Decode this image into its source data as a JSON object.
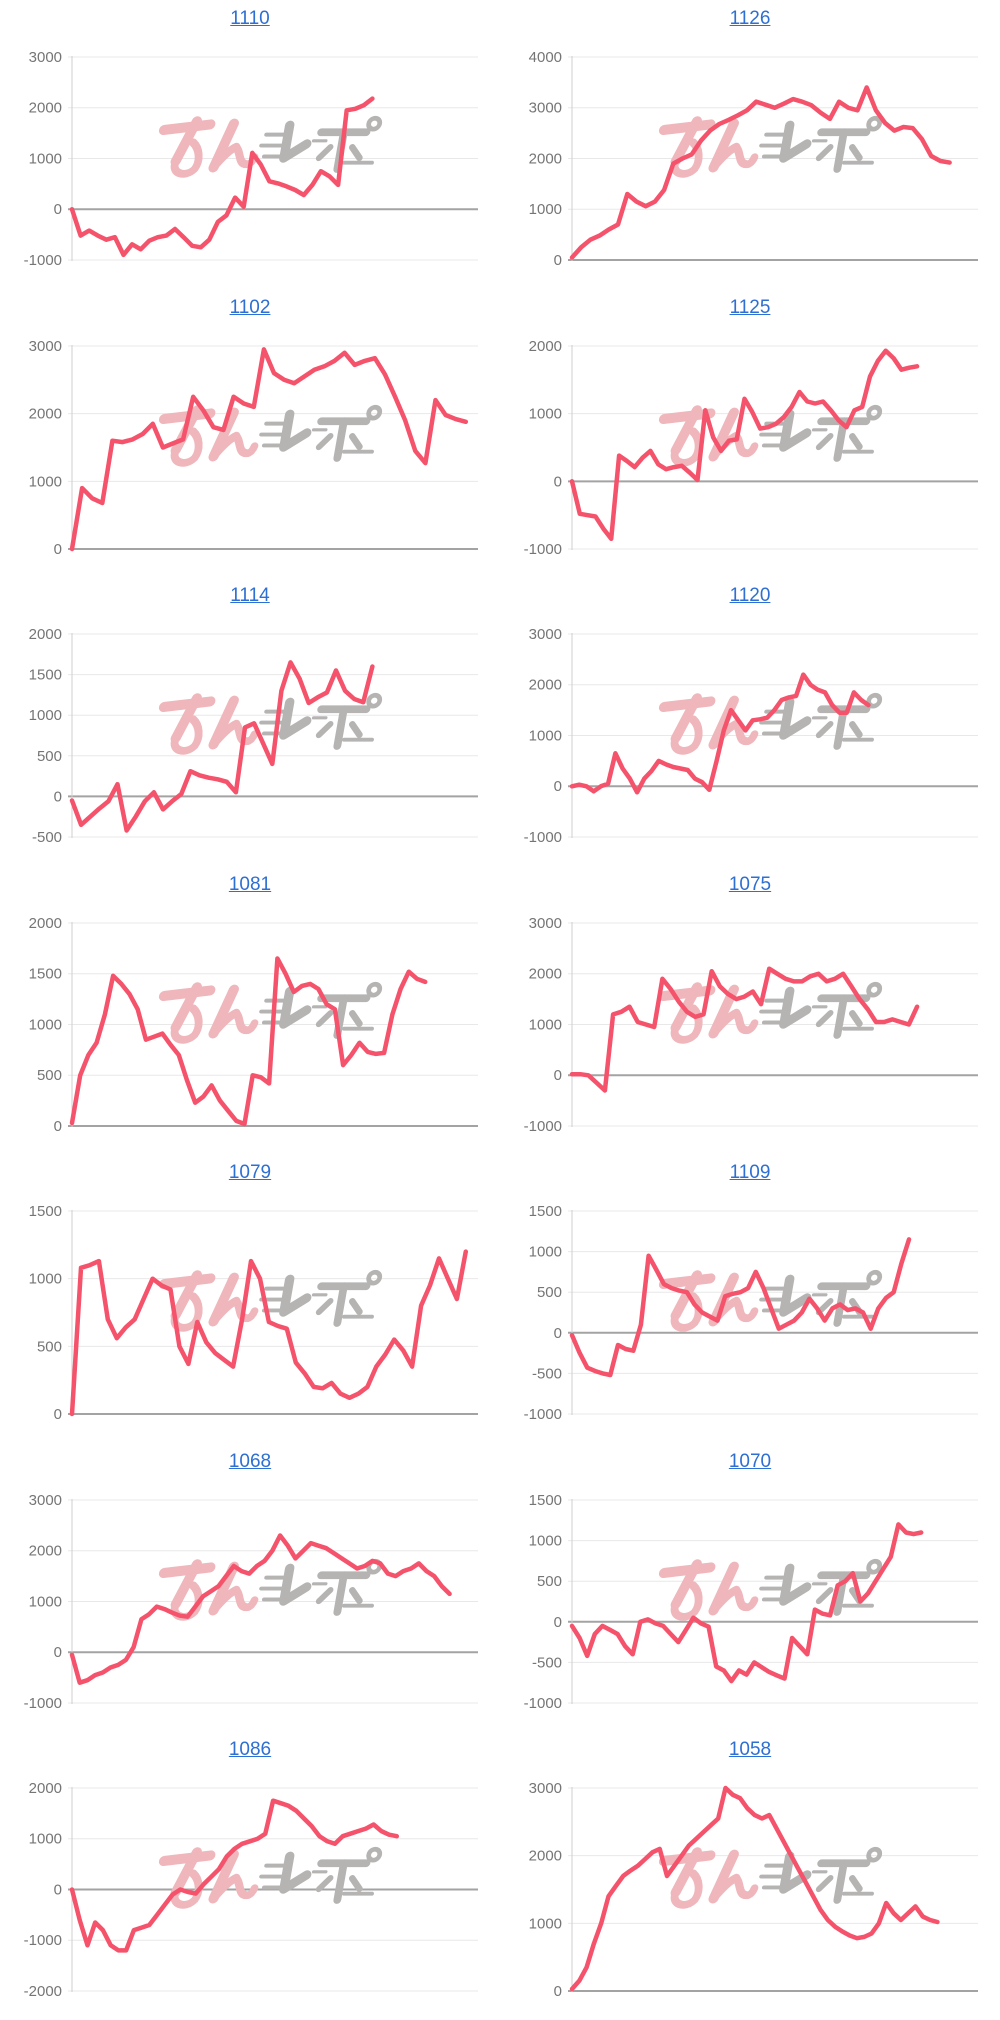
{
  "page": {
    "description": "Grid of 14 daily slump graphs (line charts) of machine payout balance, each titled with a machine number link",
    "background": "#ffffff",
    "columns": 2,
    "rows": 7
  },
  "colors": {
    "line": "#f4536b",
    "grid_line": "#e8e8e8",
    "zero_line": "#a3a3a3",
    "axis_line": "#cfcfcf",
    "tick_label": "#757575",
    "link": "#2d6fd2",
    "watermark_pink": "#efb6bb",
    "watermark_gray": "#b5b4b3"
  },
  "watermark": {
    "name": "minrepo-watermark",
    "text": "みんレポ",
    "pink_part": "みん",
    "gray_part": "レポ"
  },
  "chart_data": [
    {
      "title": "1110",
      "type": "line",
      "ylim": [
        -1000,
        3000
      ],
      "yticks": [
        3000,
        2000,
        1000,
        0,
        -1000
      ],
      "span": 0.74,
      "grid": true,
      "legend": "none",
      "values": [
        0,
        -520,
        -420,
        -520,
        -600,
        -550,
        -900,
        -690,
        -790,
        -620,
        -550,
        -520,
        -390,
        -550,
        -720,
        -750,
        -600,
        -250,
        -120,
        230,
        50,
        1110,
        880,
        550,
        510,
        450,
        380,
        280,
        480,
        750,
        650,
        480,
        1950,
        1980,
        2050,
        2180
      ]
    },
    {
      "title": "1126",
      "type": "line",
      "ylim": [
        0,
        4000
      ],
      "yticks": [
        4000,
        3000,
        2000,
        1000,
        0
      ],
      "span": 0.93,
      "grid": true,
      "legend": "none",
      "values": [
        50,
        250,
        400,
        480,
        600,
        700,
        1300,
        1150,
        1060,
        1150,
        1380,
        1900,
        2000,
        2080,
        2350,
        2550,
        2680,
        2760,
        2850,
        2950,
        3120,
        3060,
        3000,
        3080,
        3170,
        3120,
        3050,
        2900,
        2780,
        3120,
        3000,
        2950,
        3400,
        2950,
        2700,
        2550,
        2620,
        2600,
        2380,
        2050,
        1950,
        1920
      ]
    },
    {
      "title": "1102",
      "type": "line",
      "ylim": [
        0,
        3000
      ],
      "yticks": [
        3000,
        2000,
        1000,
        0
      ],
      "span": 0.97,
      "grid": true,
      "legend": "none",
      "values": [
        0,
        900,
        750,
        680,
        1600,
        1580,
        1620,
        1700,
        1850,
        1500,
        1560,
        1620,
        2250,
        2050,
        1800,
        1760,
        2250,
        2150,
        2100,
        2950,
        2600,
        2500,
        2450,
        2550,
        2650,
        2700,
        2780,
        2900,
        2720,
        2780,
        2820,
        2580,
        2250,
        1900,
        1450,
        1270,
        2200,
        1980,
        1920,
        1880
      ]
    },
    {
      "title": "1125",
      "type": "line",
      "ylim": [
        -1000,
        2000
      ],
      "yticks": [
        2000,
        1000,
        0,
        -1000
      ],
      "span": 0.85,
      "grid": true,
      "legend": "none",
      "values": [
        0,
        -480,
        -500,
        -520,
        -700,
        -850,
        380,
        300,
        210,
        350,
        450,
        250,
        180,
        210,
        230,
        130,
        20,
        1050,
        650,
        450,
        600,
        620,
        1220,
        1020,
        780,
        800,
        850,
        950,
        1100,
        1320,
        1180,
        1150,
        1180,
        1050,
        900,
        800,
        1050,
        1100,
        1550,
        1780,
        1930,
        1820,
        1650,
        1680,
        1700
      ]
    },
    {
      "title": "1114",
      "type": "line",
      "ylim": [
        -500,
        2000
      ],
      "yticks": [
        2000,
        1500,
        1000,
        500,
        0,
        -500
      ],
      "span": 0.74,
      "grid": true,
      "legend": "none",
      "values": [
        -50,
        -350,
        -250,
        -150,
        -60,
        150,
        -420,
        -250,
        -60,
        50,
        -160,
        -60,
        30,
        310,
        260,
        230,
        210,
        180,
        50,
        850,
        900,
        650,
        400,
        1300,
        1650,
        1450,
        1150,
        1220,
        1280,
        1550,
        1300,
        1200,
        1160,
        1600
      ]
    },
    {
      "title": "1120",
      "type": "line",
      "ylim": [
        -1000,
        3000
      ],
      "yticks": [
        3000,
        2000,
        1000,
        0,
        -1000
      ],
      "span": 0.73,
      "grid": true,
      "legend": "none",
      "values": [
        0,
        30,
        0,
        -100,
        0,
        50,
        650,
        350,
        150,
        -120,
        150,
        300,
        500,
        430,
        380,
        350,
        320,
        150,
        80,
        -70,
        500,
        1100,
        1500,
        1300,
        1100,
        1300,
        1320,
        1350,
        1500,
        1700,
        1750,
        1780,
        2200,
        2000,
        1900,
        1850,
        1600,
        1450,
        1450,
        1850,
        1700,
        1600
      ]
    },
    {
      "title": "1081",
      "type": "line",
      "ylim": [
        0,
        2000
      ],
      "yticks": [
        2000,
        1500,
        1000,
        500,
        0
      ],
      "span": 0.87,
      "grid": true,
      "legend": "none",
      "values": [
        30,
        500,
        700,
        820,
        1100,
        1480,
        1400,
        1300,
        1150,
        850,
        880,
        910,
        800,
        700,
        450,
        230,
        290,
        400,
        250,
        150,
        50,
        20,
        500,
        480,
        420,
        1650,
        1500,
        1320,
        1380,
        1400,
        1350,
        1200,
        1150,
        600,
        700,
        820,
        730,
        710,
        720,
        1100,
        1350,
        1520,
        1450,
        1420
      ]
    },
    {
      "title": "1075",
      "type": "line",
      "ylim": [
        -1000,
        3000
      ],
      "yticks": [
        3000,
        2000,
        1000,
        0,
        -1000
      ],
      "span": 0.85,
      "grid": true,
      "legend": "none",
      "values": [
        20,
        20,
        0,
        -150,
        -300,
        1200,
        1250,
        1350,
        1050,
        1000,
        950,
        1900,
        1700,
        1450,
        1250,
        1150,
        1200,
        2050,
        1750,
        1600,
        1500,
        1550,
        1650,
        1400,
        2100,
        2000,
        1900,
        1850,
        1850,
        1950,
        2000,
        1850,
        1900,
        2000,
        1750,
        1500,
        1300,
        1050,
        1050,
        1100,
        1050,
        1000,
        1350
      ]
    },
    {
      "title": "1079",
      "type": "line",
      "ylim": [
        0,
        1500
      ],
      "yticks": [
        1500,
        1000,
        500,
        0
      ],
      "span": 0.97,
      "grid": true,
      "legend": "none",
      "values": [
        0,
        1080,
        1100,
        1130,
        700,
        560,
        640,
        700,
        850,
        1000,
        950,
        920,
        500,
        370,
        680,
        530,
        450,
        400,
        350,
        700,
        1130,
        1000,
        680,
        650,
        630,
        380,
        300,
        200,
        190,
        230,
        150,
        120,
        150,
        200,
        350,
        440,
        550,
        470,
        350,
        800,
        950,
        1150,
        1000,
        850,
        1200
      ]
    },
    {
      "title": "1109",
      "type": "line",
      "ylim": [
        -1000,
        1500
      ],
      "yticks": [
        1500,
        1000,
        500,
        0,
        -500,
        -1000
      ],
      "span": 0.83,
      "grid": true,
      "legend": "none",
      "values": [
        -30,
        -250,
        -430,
        -470,
        -500,
        -520,
        -150,
        -200,
        -220,
        100,
        950,
        780,
        600,
        550,
        520,
        500,
        350,
        250,
        200,
        150,
        450,
        480,
        500,
        550,
        750,
        550,
        300,
        50,
        100,
        150,
        250,
        420,
        300,
        150,
        300,
        350,
        280,
        300,
        250,
        50,
        300,
        430,
        500,
        850,
        1150
      ]
    },
    {
      "title": "1068",
      "type": "line",
      "ylim": [
        -1000,
        3000
      ],
      "yticks": [
        3000,
        2000,
        1000,
        0,
        -1000
      ],
      "span": 0.93,
      "grid": true,
      "legend": "none",
      "values": [
        -50,
        -600,
        -550,
        -450,
        -400,
        -300,
        -250,
        -150,
        100,
        650,
        750,
        900,
        850,
        780,
        720,
        700,
        900,
        1100,
        1200,
        1300,
        1500,
        1700,
        1600,
        1550,
        1700,
        1800,
        2000,
        2300,
        2100,
        1850,
        2000,
        2150,
        2100,
        2050,
        1950,
        1850,
        1750,
        1650,
        1700,
        1800,
        1750,
        1550,
        1500,
        1600,
        1650,
        1750,
        1600,
        1500,
        1300,
        1150
      ]
    },
    {
      "title": "1070",
      "type": "line",
      "ylim": [
        -1000,
        1500
      ],
      "yticks": [
        1500,
        1000,
        500,
        0,
        -500,
        -1000
      ],
      "span": 0.86,
      "grid": true,
      "legend": "none",
      "values": [
        -50,
        -200,
        -420,
        -150,
        -50,
        -100,
        -150,
        -300,
        -400,
        0,
        30,
        -20,
        -50,
        -150,
        -250,
        -100,
        50,
        -20,
        -60,
        -550,
        -600,
        -730,
        -600,
        -650,
        -500,
        -560,
        -620,
        -660,
        -700,
        -200,
        -300,
        -400,
        150,
        100,
        80,
        450,
        500,
        600,
        250,
        350,
        500,
        650,
        800,
        1200,
        1100,
        1080,
        1100
      ]
    },
    {
      "title": "1086",
      "type": "line",
      "ylim": [
        -2000,
        2000
      ],
      "yticks": [
        2000,
        1000,
        0,
        -1000,
        -2000
      ],
      "span": 0.8,
      "grid": true,
      "legend": "none",
      "values": [
        0,
        -600,
        -1100,
        -650,
        -800,
        -1100,
        -1200,
        -1200,
        -800,
        -750,
        -700,
        -500,
        -300,
        -100,
        0,
        -50,
        -80,
        100,
        250,
        400,
        650,
        800,
        900,
        950,
        1000,
        1100,
        1750,
        1700,
        1650,
        1550,
        1400,
        1250,
        1050,
        950,
        900,
        1050,
        1100,
        1150,
        1200,
        1280,
        1150,
        1080,
        1050
      ]
    },
    {
      "title": "1058",
      "type": "line",
      "ylim": [
        0,
        3000
      ],
      "yticks": [
        3000,
        2000,
        1000,
        0
      ],
      "span": 0.9,
      "grid": true,
      "legend": "none",
      "values": [
        30,
        150,
        350,
        700,
        1000,
        1400,
        1550,
        1700,
        1780,
        1850,
        1950,
        2050,
        2100,
        1700,
        1850,
        2000,
        2150,
        2250,
        2350,
        2450,
        2550,
        3000,
        2900,
        2850,
        2700,
        2600,
        2550,
        2600,
        2400,
        2200,
        2000,
        1800,
        1600,
        1400,
        1200,
        1050,
        950,
        880,
        820,
        780,
        800,
        850,
        1000,
        1300,
        1150,
        1050,
        1150,
        1250,
        1100,
        1050,
        1020
      ]
    }
  ]
}
